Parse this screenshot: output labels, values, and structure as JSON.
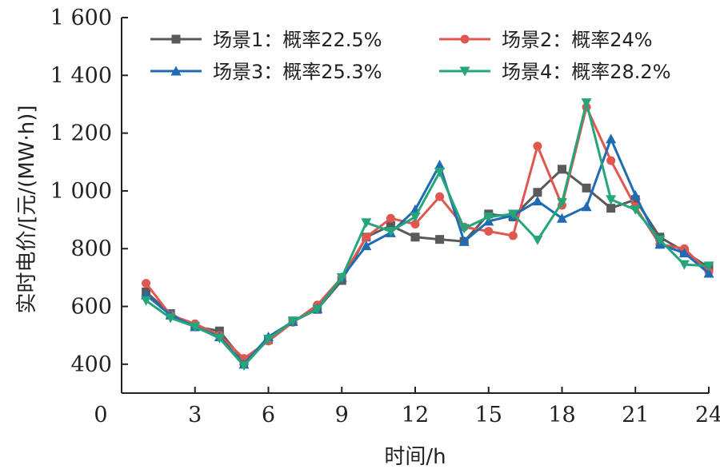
{
  "chart_data": {
    "type": "line",
    "title": "",
    "xlabel": "时间/h",
    "ylabel": "实时电价/[元/(MW·h)]",
    "xlim": [
      0,
      24
    ],
    "ylim": [
      300,
      1600
    ],
    "xticks": [
      0,
      3,
      6,
      9,
      12,
      15,
      18,
      21,
      24
    ],
    "xtick_labels": [
      "0",
      "3",
      "6",
      "9",
      "12",
      "15",
      "18",
      "21",
      "24"
    ],
    "yticks": [
      400,
      600,
      800,
      1000,
      1200,
      1400,
      1600
    ],
    "ytick_labels": [
      "400",
      "600",
      "800",
      "1 000",
      "1 200",
      "1 400",
      "1 600"
    ],
    "grid": false,
    "legend_position": "top",
    "x": [
      1,
      2,
      3,
      4,
      5,
      6,
      7,
      8,
      9,
      10,
      11,
      12,
      13,
      14,
      15,
      16,
      17,
      18,
      19,
      20,
      21,
      22,
      23,
      24
    ],
    "series": [
      {
        "name": "场景1：概率22.5%",
        "color": "#5a5a5a",
        "marker": "square",
        "values": [
          650,
          575,
          530,
          515,
          410,
          485,
          548,
          590,
          690,
          840,
          880,
          840,
          832,
          825,
          920,
          910,
          995,
          1075,
          1010,
          940,
          970,
          840,
          790,
          735
        ]
      },
      {
        "name": "场景2：概率24%",
        "color": "#e0574f",
        "marker": "circle",
        "values": [
          680,
          570,
          540,
          500,
          420,
          480,
          545,
          605,
          700,
          840,
          905,
          885,
          980,
          875,
          860,
          845,
          1155,
          950,
          1290,
          1105,
          945,
          815,
          800,
          720
        ]
      },
      {
        "name": "场景3：概率25.3%",
        "color": "#1f6cb5",
        "marker": "triangle-up",
        "values": [
          640,
          570,
          530,
          495,
          400,
          495,
          548,
          592,
          700,
          810,
          855,
          935,
          1090,
          825,
          895,
          915,
          965,
          905,
          945,
          1180,
          985,
          815,
          785,
          715
        ]
      },
      {
        "name": "场景4：概率28.2%",
        "color": "#27a57a",
        "marker": "triangle-down",
        "values": [
          620,
          560,
          530,
          490,
          395,
          487,
          550,
          590,
          700,
          890,
          860,
          910,
          1065,
          870,
          910,
          920,
          830,
          960,
          1305,
          970,
          935,
          830,
          745,
          740
        ]
      }
    ]
  }
}
